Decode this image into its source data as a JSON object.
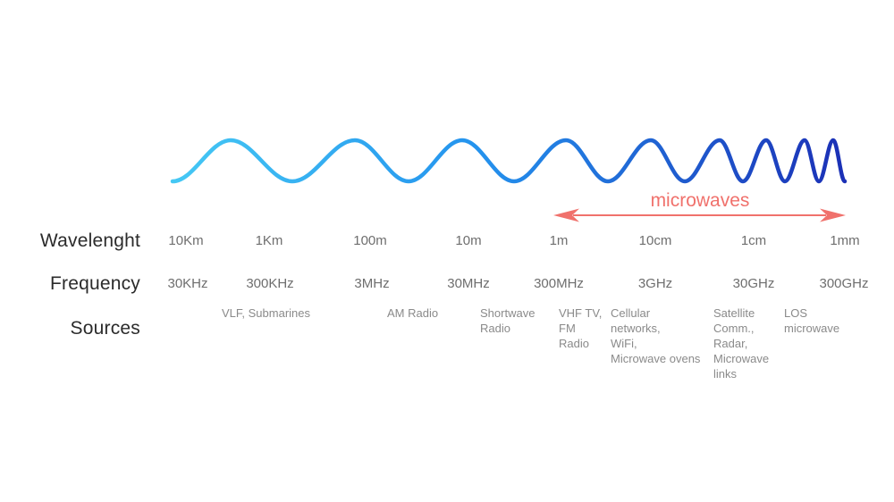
{
  "row_labels": {
    "wavelength": "Wavelenght",
    "frequency": "Frequency",
    "sources": "Sources"
  },
  "microwaves_label": "microwaves",
  "table": {
    "columns": [
      {
        "wavelength": "10Km",
        "frequency": "30KHz"
      },
      {
        "wavelength": "1Km",
        "frequency": "300KHz"
      },
      {
        "wavelength": "100m",
        "frequency": "3MHz"
      },
      {
        "wavelength": "10m",
        "frequency": "30MHz"
      },
      {
        "wavelength": "1m",
        "frequency": "300MHz"
      },
      {
        "wavelength": "10cm",
        "frequency": "3GHz"
      },
      {
        "wavelength": "1cm",
        "frequency": "30GHz"
      },
      {
        "wavelength": "1mm",
        "frequency": "300GHz"
      }
    ]
  },
  "sources": [
    {
      "text": "VLF, Submarines"
    },
    {
      "text": "AM Radio"
    },
    {
      "text": "Shortwave\nRadio"
    },
    {
      "text": "VHF TV,\nFM\nRadio"
    },
    {
      "text": "Cellular\nnetworks,\nWiFi,\nMicrowave ovens"
    },
    {
      "text": "Satellite\nComm.,\nRadar,\nMicrowave\nlinks"
    },
    {
      "text": "LOS\nmicrowave"
    }
  ],
  "colors": {
    "wave_start": "#45c8f4",
    "wave_mid": "#2493ee",
    "wave_end": "#1b30b6",
    "accent": "#f0716c",
    "label_text": "#2b2b2b",
    "value_text": "#6e6e6e",
    "source_text": "#8a8a8a"
  }
}
